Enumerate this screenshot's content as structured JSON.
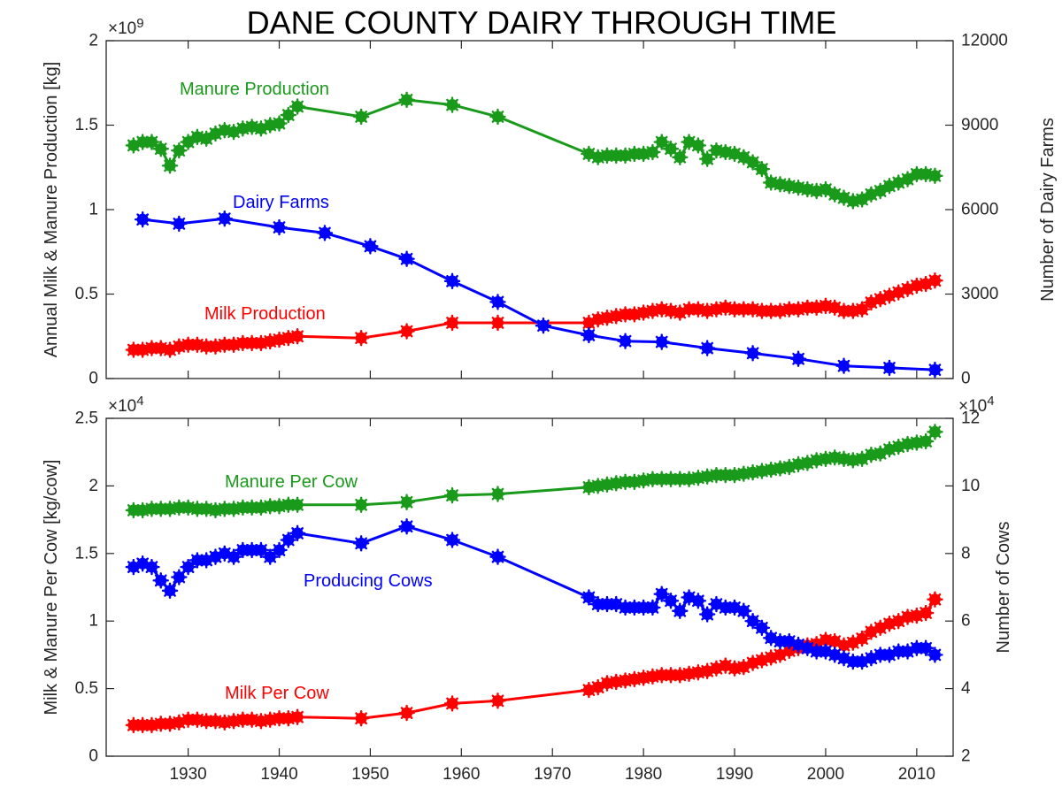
{
  "title": "DANE COUNTY DAIRY THROUGH TIME",
  "colors": {
    "manure": "#1a9a1a",
    "milk": "#ff0000",
    "count": "#0000ff",
    "axis": "#262626"
  },
  "chart_data": [
    {
      "type": "line",
      "name": "top",
      "grid": false,
      "xlim": [
        1921,
        2014
      ],
      "x_ticks": [
        1930,
        1940,
        1950,
        1960,
        1970,
        1980,
        1990,
        2000,
        2010
      ],
      "left_axis": {
        "label": "Annual Milk & Manure Production [kg]",
        "multiplier": "×10",
        "multiplier_exp": "9",
        "ylim": [
          0,
          2
        ],
        "ticks": [
          "0",
          "0.5",
          "1",
          "1.5",
          "2"
        ]
      },
      "right_axis": {
        "label": "Number of Dairy Farms",
        "ylim": [
          0,
          12000
        ],
        "ticks": [
          "0",
          "3000",
          "6000",
          "9000",
          "12000"
        ]
      },
      "series": [
        {
          "name": "Manure Production",
          "axis": "left",
          "color": "#1a9a1a",
          "x": [
            1924,
            1925,
            1926,
            1927,
            1928,
            1929,
            1930,
            1931,
            1932,
            1933,
            1934,
            1935,
            1936,
            1937,
            1938,
            1939,
            1940,
            1941,
            1942,
            1949,
            1954,
            1959,
            1964,
            1974,
            1975,
            1976,
            1977,
            1978,
            1979,
            1980,
            1981,
            1982,
            1983,
            1984,
            1985,
            1986,
            1987,
            1988,
            1989,
            1990,
            1991,
            1992,
            1993,
            1994,
            1995,
            1996,
            1997,
            1998,
            1999,
            2000,
            2001,
            2002,
            2003,
            2004,
            2005,
            2006,
            2007,
            2008,
            2009,
            2010,
            2011,
            2012
          ],
          "y": [
            1.38,
            1.4,
            1.4,
            1.36,
            1.26,
            1.35,
            1.4,
            1.43,
            1.42,
            1.45,
            1.47,
            1.46,
            1.48,
            1.49,
            1.48,
            1.5,
            1.51,
            1.56,
            1.61,
            1.55,
            1.65,
            1.62,
            1.55,
            1.33,
            1.31,
            1.32,
            1.32,
            1.32,
            1.33,
            1.33,
            1.34,
            1.4,
            1.36,
            1.31,
            1.4,
            1.38,
            1.3,
            1.35,
            1.34,
            1.33,
            1.31,
            1.28,
            1.24,
            1.16,
            1.15,
            1.14,
            1.13,
            1.12,
            1.11,
            1.12,
            1.09,
            1.07,
            1.05,
            1.06,
            1.09,
            1.11,
            1.14,
            1.16,
            1.18,
            1.21,
            1.21,
            1.2
          ]
        },
        {
          "name": "Milk Production",
          "axis": "left",
          "color": "#ff0000",
          "x": [
            1924,
            1925,
            1926,
            1927,
            1928,
            1929,
            1930,
            1931,
            1932,
            1933,
            1934,
            1935,
            1936,
            1937,
            1938,
            1939,
            1940,
            1941,
            1942,
            1949,
            1954,
            1959,
            1964,
            1974,
            1975,
            1976,
            1977,
            1978,
            1979,
            1980,
            1981,
            1982,
            1983,
            1984,
            1985,
            1986,
            1987,
            1988,
            1989,
            1990,
            1991,
            1992,
            1993,
            1994,
            1995,
            1996,
            1997,
            1998,
            1999,
            2000,
            2001,
            2002,
            2003,
            2004,
            2005,
            2006,
            2007,
            2008,
            2009,
            2010,
            2011,
            2012
          ],
          "y": [
            0.17,
            0.17,
            0.18,
            0.18,
            0.17,
            0.19,
            0.2,
            0.2,
            0.19,
            0.19,
            0.2,
            0.2,
            0.21,
            0.21,
            0.21,
            0.22,
            0.23,
            0.24,
            0.25,
            0.24,
            0.28,
            0.33,
            0.33,
            0.33,
            0.35,
            0.36,
            0.37,
            0.38,
            0.38,
            0.39,
            0.4,
            0.41,
            0.4,
            0.39,
            0.41,
            0.41,
            0.4,
            0.41,
            0.42,
            0.41,
            0.41,
            0.41,
            0.4,
            0.4,
            0.4,
            0.41,
            0.41,
            0.42,
            0.42,
            0.43,
            0.42,
            0.4,
            0.4,
            0.41,
            0.45,
            0.47,
            0.49,
            0.51,
            0.53,
            0.55,
            0.56,
            0.58
          ]
        },
        {
          "name": "Dairy Farms",
          "axis": "right",
          "color": "#0000ff",
          "x": [
            1925,
            1929,
            1934,
            1940,
            1945,
            1950,
            1954,
            1959,
            1964,
            1969,
            1974,
            1978,
            1982,
            1987,
            1992,
            1997,
            2002,
            2007,
            2012
          ],
          "y": [
            5650,
            5500,
            5680,
            5370,
            5170,
            4700,
            4250,
            3460,
            2720,
            1880,
            1540,
            1330,
            1300,
            1080,
            900,
            700,
            450,
            380,
            310
          ]
        }
      ],
      "annotations": [
        {
          "text": "Manure Production",
          "color": "#1a9a1a"
        },
        {
          "text": "Dairy Farms",
          "color": "#0000ff"
        },
        {
          "text": "Milk Production",
          "color": "#ff0000"
        }
      ]
    },
    {
      "type": "line",
      "name": "bottom",
      "grid": false,
      "xlim": [
        1921,
        2014
      ],
      "x_ticks": [
        1930,
        1940,
        1950,
        1960,
        1970,
        1980,
        1990,
        2000,
        2010
      ],
      "x_tick_labels": [
        "1930",
        "1940",
        "1950",
        "1960",
        "1970",
        "1980",
        "1990",
        "2000",
        "2010"
      ],
      "left_axis": {
        "label": "Milk & Manure Per Cow [kg/cow]",
        "multiplier": "×10",
        "multiplier_exp": "4",
        "ylim": [
          0,
          2.5
        ],
        "ticks": [
          "0",
          "0.5",
          "1",
          "1.5",
          "2",
          "2.5"
        ]
      },
      "right_axis": {
        "label": "Number of Cows",
        "multiplier": "×10",
        "multiplier_exp": "4",
        "ylim": [
          2,
          12
        ],
        "ticks": [
          "2",
          "4",
          "6",
          "8",
          "10",
          "12"
        ]
      },
      "series": [
        {
          "name": "Manure Per Cow",
          "axis": "left",
          "color": "#1a9a1a",
          "x": [
            1924,
            1925,
            1926,
            1927,
            1928,
            1929,
            1930,
            1931,
            1932,
            1933,
            1934,
            1935,
            1936,
            1937,
            1938,
            1939,
            1940,
            1941,
            1942,
            1949,
            1954,
            1959,
            1964,
            1974,
            1975,
            1976,
            1977,
            1978,
            1979,
            1980,
            1981,
            1982,
            1983,
            1984,
            1985,
            1986,
            1987,
            1988,
            1989,
            1990,
            1991,
            1992,
            1993,
            1994,
            1995,
            1996,
            1997,
            1998,
            1999,
            2000,
            2001,
            2002,
            2003,
            2004,
            2005,
            2006,
            2007,
            2008,
            2009,
            2010,
            2011,
            2012
          ],
          "y": [
            1.82,
            1.82,
            1.83,
            1.83,
            1.83,
            1.84,
            1.84,
            1.83,
            1.83,
            1.82,
            1.83,
            1.83,
            1.84,
            1.84,
            1.84,
            1.85,
            1.85,
            1.86,
            1.86,
            1.86,
            1.88,
            1.93,
            1.94,
            1.99,
            2.0,
            2.01,
            2.02,
            2.03,
            2.03,
            2.04,
            2.05,
            2.05,
            2.05,
            2.05,
            2.05,
            2.06,
            2.07,
            2.08,
            2.08,
            2.08,
            2.09,
            2.1,
            2.11,
            2.12,
            2.13,
            2.14,
            2.16,
            2.17,
            2.19,
            2.2,
            2.21,
            2.2,
            2.19,
            2.2,
            2.23,
            2.24,
            2.27,
            2.29,
            2.31,
            2.32,
            2.33,
            2.4
          ]
        },
        {
          "name": "Milk Per Cow",
          "axis": "left",
          "color": "#ff0000",
          "x": [
            1924,
            1925,
            1926,
            1927,
            1928,
            1929,
            1930,
            1931,
            1932,
            1933,
            1934,
            1935,
            1936,
            1937,
            1938,
            1939,
            1940,
            1941,
            1942,
            1949,
            1954,
            1959,
            1964,
            1974,
            1975,
            1976,
            1977,
            1978,
            1979,
            1980,
            1981,
            1982,
            1983,
            1984,
            1985,
            1986,
            1987,
            1988,
            1989,
            1990,
            1991,
            1992,
            1993,
            1994,
            1995,
            1996,
            1997,
            1998,
            1999,
            2000,
            2001,
            2002,
            2003,
            2004,
            2005,
            2006,
            2007,
            2008,
            2009,
            2010,
            2011,
            2012
          ],
          "y": [
            0.23,
            0.23,
            0.23,
            0.24,
            0.24,
            0.25,
            0.27,
            0.27,
            0.26,
            0.26,
            0.25,
            0.26,
            0.27,
            0.27,
            0.26,
            0.27,
            0.28,
            0.28,
            0.29,
            0.28,
            0.32,
            0.39,
            0.41,
            0.49,
            0.51,
            0.54,
            0.55,
            0.56,
            0.57,
            0.58,
            0.59,
            0.6,
            0.6,
            0.6,
            0.61,
            0.62,
            0.63,
            0.65,
            0.67,
            0.65,
            0.66,
            0.69,
            0.71,
            0.73,
            0.75,
            0.78,
            0.8,
            0.82,
            0.83,
            0.86,
            0.85,
            0.82,
            0.84,
            0.87,
            0.92,
            0.95,
            0.98,
            1.0,
            1.03,
            1.04,
            1.06,
            1.16
          ]
        },
        {
          "name": "Producing Cows",
          "axis": "right",
          "color": "#0000ff",
          "x": [
            1924,
            1925,
            1926,
            1927,
            1928,
            1929,
            1930,
            1931,
            1932,
            1933,
            1934,
            1935,
            1936,
            1937,
            1938,
            1939,
            1940,
            1941,
            1942,
            1949,
            1954,
            1959,
            1964,
            1974,
            1975,
            1976,
            1977,
            1978,
            1979,
            1980,
            1981,
            1982,
            1983,
            1984,
            1985,
            1986,
            1987,
            1988,
            1989,
            1990,
            1991,
            1992,
            1993,
            1994,
            1995,
            1996,
            1997,
            1998,
            1999,
            2000,
            2001,
            2002,
            2003,
            2004,
            2005,
            2006,
            2007,
            2008,
            2009,
            2010,
            2011,
            2012
          ],
          "y": [
            7.6,
            7.7,
            7.6,
            7.2,
            6.9,
            7.3,
            7.6,
            7.8,
            7.8,
            7.9,
            8.0,
            7.9,
            8.1,
            8.1,
            8.1,
            7.9,
            8.1,
            8.4,
            8.6,
            8.3,
            8.8,
            8.4,
            7.9,
            6.7,
            6.5,
            6.5,
            6.5,
            6.4,
            6.4,
            6.4,
            6.4,
            6.8,
            6.6,
            6.3,
            6.7,
            6.6,
            6.2,
            6.5,
            6.4,
            6.4,
            6.3,
            6.0,
            5.8,
            5.5,
            5.4,
            5.4,
            5.3,
            5.2,
            5.1,
            5.1,
            5.0,
            4.9,
            4.8,
            4.8,
            4.9,
            5.0,
            5.0,
            5.1,
            5.1,
            5.2,
            5.2,
            5.0
          ]
        }
      ],
      "annotations": [
        {
          "text": "Manure Per Cow",
          "color": "#1a9a1a"
        },
        {
          "text": "Producing Cows",
          "color": "#0000ff"
        },
        {
          "text": "Milk Per Cow",
          "color": "#ff0000"
        }
      ]
    }
  ]
}
